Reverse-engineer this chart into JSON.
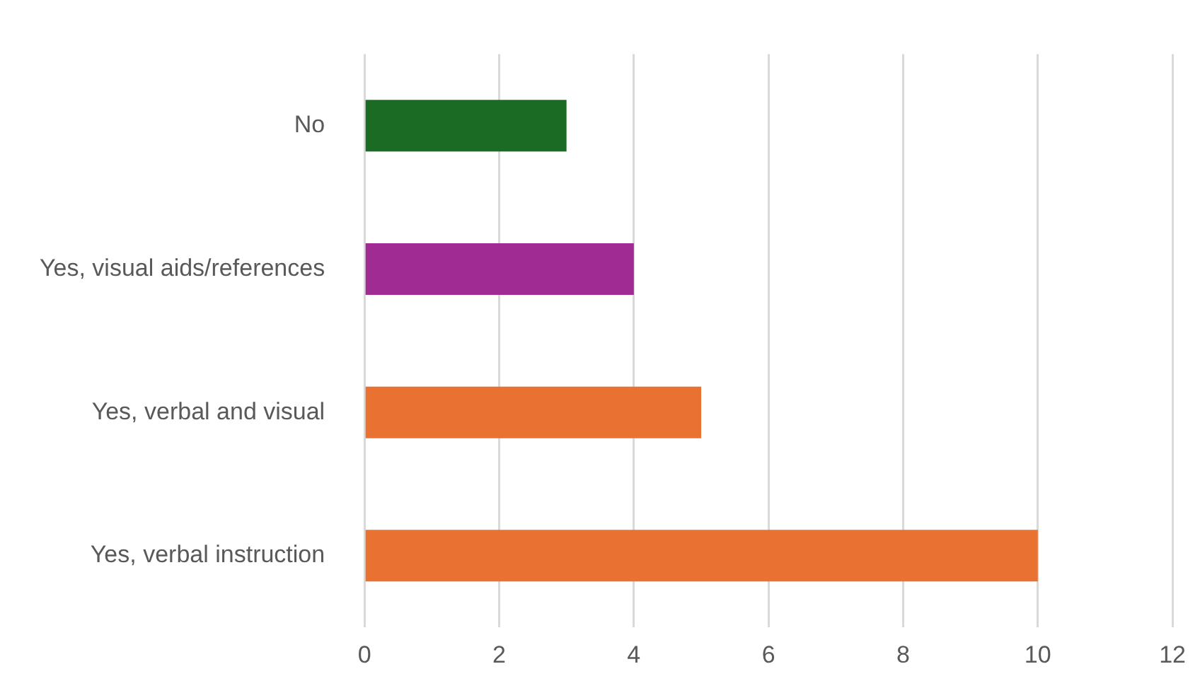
{
  "chart_data": {
    "type": "bar",
    "orientation": "horizontal",
    "categories": [
      "No",
      "Yes, visual aids/references",
      "Yes, verbal and visual",
      "Yes, verbal instruction"
    ],
    "values": [
      3,
      4,
      5,
      10
    ],
    "colors": [
      "#1b6b24",
      "#a02b93",
      "#e97132",
      "#e97132"
    ],
    "xlim": [
      0,
      12
    ],
    "xticks": [
      0,
      2,
      4,
      6,
      8,
      10,
      12
    ],
    "grid": "x",
    "legend": false
  }
}
